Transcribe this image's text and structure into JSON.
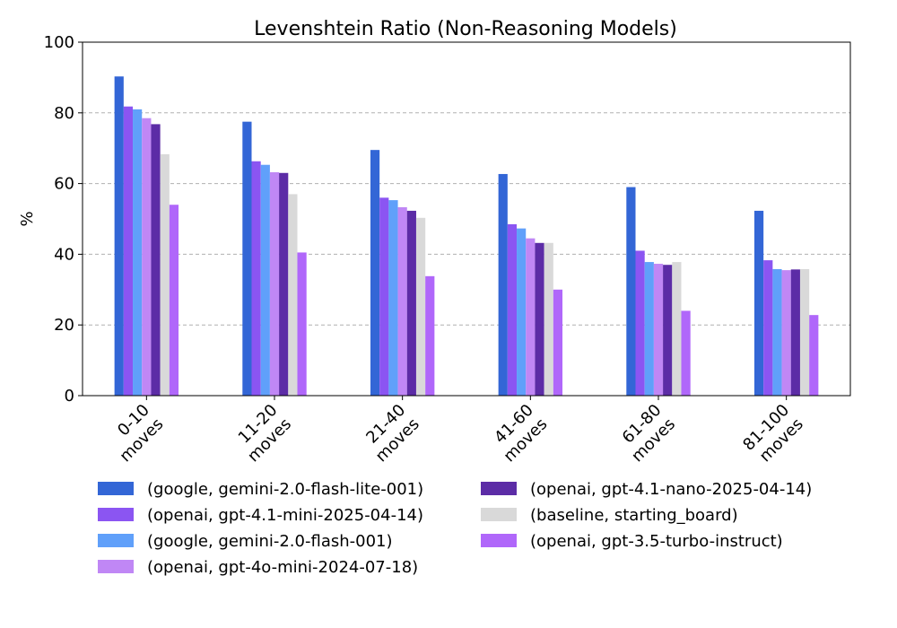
{
  "chart_data": {
    "type": "bar",
    "title": "Levenshtein Ratio (Non-Reasoning Models)",
    "xlabel": "",
    "ylabel": "%",
    "ylim": [
      0,
      100
    ],
    "yticks": [
      0,
      20,
      40,
      60,
      80,
      100
    ],
    "grid": "y-dashed",
    "legend_position": "bottom",
    "categories": [
      [
        "0-10",
        "moves"
      ],
      [
        "11-20",
        "moves"
      ],
      [
        "21-40",
        "moves"
      ],
      [
        "41-60",
        "moves"
      ],
      [
        "61-80",
        "moves"
      ],
      [
        "81-100",
        "moves"
      ]
    ],
    "series": [
      {
        "name": "(google, gemini-2.0-flash-lite-001)",
        "color": "#3366d6",
        "values": [
          90.3,
          77.5,
          69.5,
          62.7,
          59.0,
          52.3
        ]
      },
      {
        "name": "(openai, gpt-4.1-mini-2025-04-14)",
        "color": "#8b55f2",
        "values": [
          81.8,
          66.3,
          56.0,
          48.5,
          41.0,
          38.3
        ]
      },
      {
        "name": "(google, gemini-2.0-flash-001)",
        "color": "#60a0fa",
        "values": [
          81.0,
          65.3,
          55.3,
          47.3,
          37.8,
          35.8
        ]
      },
      {
        "name": "(openai, gpt-4o-mini-2024-07-18)",
        "color": "#c087f5",
        "values": [
          78.5,
          63.2,
          53.3,
          44.5,
          37.3,
          35.5
        ]
      },
      {
        "name": "(openai, gpt-4.1-nano-2025-04-14)",
        "color": "#5c2ca6",
        "values": [
          76.8,
          63.0,
          52.3,
          43.2,
          37.0,
          35.7
        ]
      },
      {
        "name": "(baseline, starting_board)",
        "color": "#d9d9d9",
        "values": [
          68.3,
          57.0,
          50.3,
          43.2,
          37.8,
          35.8
        ]
      },
      {
        "name": "(openai, gpt-3.5-turbo-instruct)",
        "color": "#b067fa",
        "values": [
          54.0,
          40.5,
          33.8,
          30.0,
          24.0,
          22.8
        ]
      }
    ]
  }
}
